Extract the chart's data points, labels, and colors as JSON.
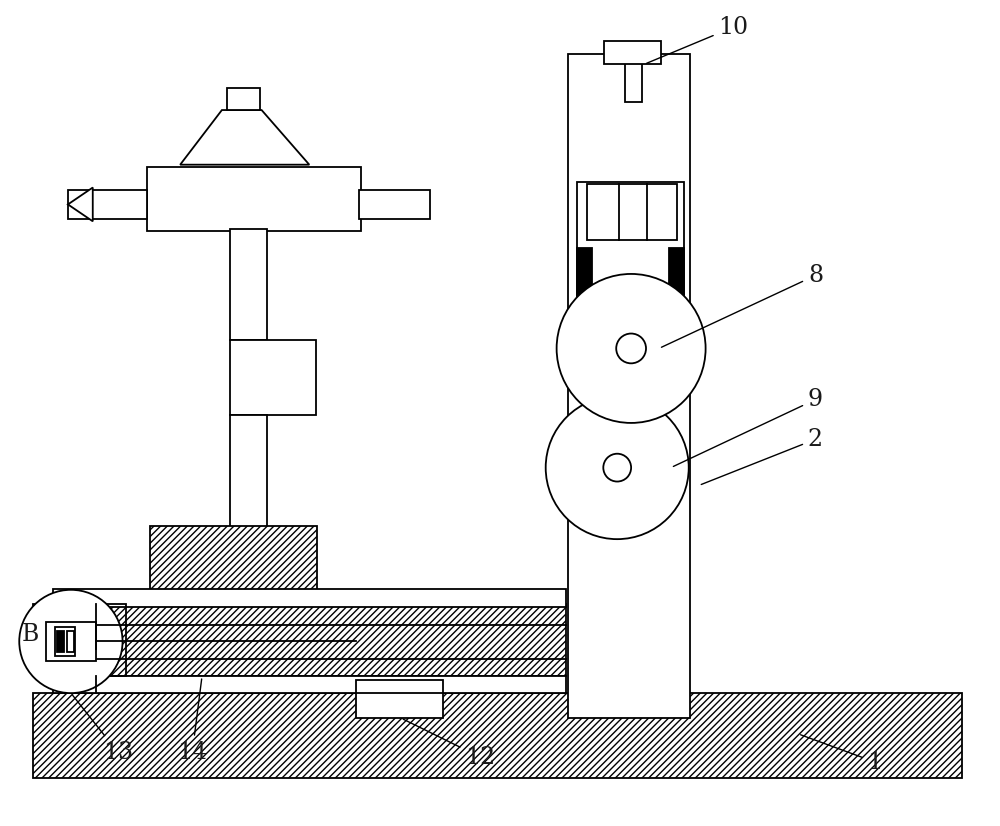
{
  "bg_color": "#ffffff",
  "line_color": "#000000",
  "figsize": [
    10.0,
    8.26
  ],
  "dpi": 100
}
